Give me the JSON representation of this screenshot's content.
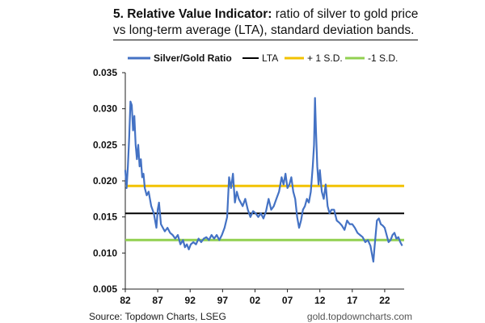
{
  "header": {
    "title_bold": "5. Relative Value Indicator:",
    "title_rest": " ratio of silver to gold price vs long-term average (LTA), standard deviation bands."
  },
  "footer": {
    "source": "Source: Topdown Charts, LSEG",
    "website": "gold.topdowncharts.com"
  },
  "chart_data": {
    "type": "line",
    "title": "5. Relative Value Indicator: ratio of silver to gold price vs long-term average (LTA), standard deviation bands.",
    "xlabel": "",
    "ylabel": "",
    "xlim": [
      1982,
      2025
    ],
    "ylim": [
      0.005,
      0.035
    ],
    "y_ticks": [
      0.005,
      0.01,
      0.015,
      0.02,
      0.025,
      0.03,
      0.035
    ],
    "y_tick_labels": [
      "0.005",
      "0.010",
      "0.015",
      "0.020",
      "0.025",
      "0.030",
      "0.035"
    ],
    "x_ticks": [
      1982,
      1987,
      1992,
      1997,
      2002,
      2007,
      2012,
      2017,
      2022
    ],
    "x_tick_labels": [
      "82",
      "87",
      "92",
      "97",
      "02",
      "07",
      "12",
      "17",
      "22"
    ],
    "grid": false,
    "legend_position": "top",
    "legend": [
      "Silver/Gold Ratio",
      "LTA",
      "+ 1 S.D.",
      "-1 S.D."
    ],
    "series": [
      {
        "name": "Silver/Gold Ratio",
        "color": "#4472C4",
        "x": [
          1982.0,
          1982.2,
          1982.4,
          1982.6,
          1982.8,
          1983.0,
          1983.2,
          1983.4,
          1983.6,
          1983.8,
          1984.0,
          1984.2,
          1984.4,
          1984.6,
          1984.8,
          1985.0,
          1985.3,
          1985.6,
          1986.0,
          1986.4,
          1986.8,
          1987.0,
          1987.2,
          1987.5,
          1987.8,
          1988.1,
          1988.5,
          1988.9,
          1989.3,
          1989.7,
          1990.1,
          1990.5,
          1990.9,
          1991.2,
          1991.5,
          1991.8,
          1992.1,
          1992.5,
          1992.9,
          1993.3,
          1993.7,
          1994.1,
          1994.5,
          1994.9,
          1995.3,
          1995.7,
          1996.1,
          1996.5,
          1996.9,
          1997.3,
          1997.7,
          1998.0,
          1998.3,
          1998.6,
          1998.9,
          1999.2,
          1999.5,
          1999.8,
          2000.1,
          2000.5,
          2000.9,
          2001.3,
          2001.7,
          2002.1,
          2002.5,
          2002.9,
          2003.3,
          2003.7,
          2004.1,
          2004.5,
          2004.9,
          2005.3,
          2005.7,
          2006.1,
          2006.4,
          2006.7,
          2007.0,
          2007.3,
          2007.6,
          2007.9,
          2008.2,
          2008.5,
          2008.8,
          2009.1,
          2009.4,
          2009.7,
          2010.0,
          2010.3,
          2010.6,
          2010.9,
          2011.1,
          2011.25,
          2011.4,
          2011.6,
          2011.8,
          2012.0,
          2012.3,
          2012.6,
          2012.9,
          2013.2,
          2013.5,
          2013.8,
          2014.2,
          2014.6,
          2015.0,
          2015.4,
          2015.8,
          2016.2,
          2016.6,
          2017.0,
          2017.4,
          2017.8,
          2018.2,
          2018.6,
          2019.0,
          2019.4,
          2019.8,
          2020.1,
          2020.25,
          2020.4,
          2020.6,
          2020.8,
          2021.1,
          2021.4,
          2021.7,
          2022.0,
          2022.3,
          2022.6,
          2022.9,
          2023.2,
          2023.5,
          2023.8,
          2024.1,
          2024.4,
          2024.7
        ],
        "values": [
          0.0215,
          0.019,
          0.022,
          0.026,
          0.031,
          0.0305,
          0.027,
          0.029,
          0.025,
          0.023,
          0.025,
          0.022,
          0.023,
          0.0205,
          0.021,
          0.019,
          0.018,
          0.0185,
          0.0165,
          0.0155,
          0.0135,
          0.016,
          0.017,
          0.014,
          0.0135,
          0.013,
          0.0135,
          0.0128,
          0.0125,
          0.012,
          0.0125,
          0.0112,
          0.0118,
          0.0108,
          0.0112,
          0.0105,
          0.0112,
          0.0115,
          0.0112,
          0.012,
          0.0115,
          0.012,
          0.0122,
          0.0118,
          0.0125,
          0.012,
          0.0125,
          0.0118,
          0.0125,
          0.0135,
          0.015,
          0.0205,
          0.019,
          0.021,
          0.017,
          0.0185,
          0.0175,
          0.017,
          0.0165,
          0.0175,
          0.016,
          0.015,
          0.0158,
          0.0155,
          0.015,
          0.0155,
          0.0148,
          0.0158,
          0.0175,
          0.016,
          0.0165,
          0.0175,
          0.0185,
          0.0205,
          0.0195,
          0.021,
          0.019,
          0.0195,
          0.0205,
          0.0185,
          0.0175,
          0.015,
          0.0135,
          0.0145,
          0.016,
          0.0165,
          0.0175,
          0.017,
          0.0185,
          0.022,
          0.025,
          0.0315,
          0.027,
          0.022,
          0.0195,
          0.0215,
          0.0185,
          0.0175,
          0.0195,
          0.0165,
          0.0155,
          0.016,
          0.016,
          0.0145,
          0.0142,
          0.0138,
          0.0132,
          0.0145,
          0.014,
          0.014,
          0.0135,
          0.0128,
          0.0125,
          0.0122,
          0.0115,
          0.0118,
          0.011,
          0.0095,
          0.0088,
          0.0105,
          0.0125,
          0.0145,
          0.0148,
          0.014,
          0.0138,
          0.0135,
          0.0125,
          0.0115,
          0.0118,
          0.0125,
          0.0128,
          0.012,
          0.0122,
          0.0115,
          0.011
        ]
      },
      {
        "name": "LTA",
        "color": "#000000",
        "values": [
          0.0155
        ]
      },
      {
        "name": "+ 1 S.D.",
        "color": "#F2C200",
        "values": [
          0.0193
        ]
      },
      {
        "name": "-1 S.D.",
        "color": "#92D050",
        "values": [
          0.0118
        ]
      }
    ]
  }
}
